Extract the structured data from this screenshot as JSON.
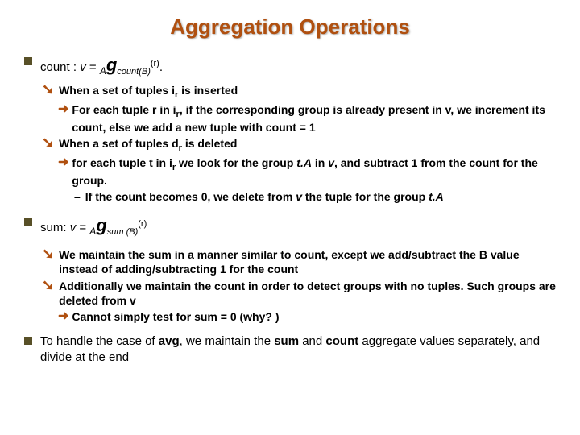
{
  "title": "Aggregation Operations",
  "colors": {
    "title_color": "#b05010",
    "l1_bullet": "#585028",
    "l2_bullet": "#b05010",
    "l3_bullet": "#b05010",
    "background": "#ffffff",
    "text": "#000000"
  },
  "fonts": {
    "title_size": 26,
    "l1_size": 15,
    "l2_size": 14,
    "l3_size": 14,
    "l4_size": 14
  },
  "content": {
    "count_label": "count : ",
    "count_expr_v": "v",
    "count_expr_eq": " = ",
    "count_expr_A": "A",
    "count_expr_g": "g",
    "count_expr_countB": "count(B)",
    "count_expr_r": "(r)",
    "count_expr_dot": ".",
    "count_insert": "When a set of tuples i",
    "count_insert_r": "r",
    "count_insert_end": " is inserted",
    "count_insert_detail_1": "For each tuple r in i",
    "count_insert_detail_1r": "r",
    "count_insert_detail_2": ", if the corresponding group is already present in v, we increment its count, else we add a new tuple with count = 1",
    "count_delete": "When a set of tuples d",
    "count_delete_r": "r",
    "count_delete_end": " is deleted",
    "count_delete_detail_1": "for each tuple t in i",
    "count_delete_detail_1r": "r",
    "count_delete_detail_2": " we look for the group ",
    "count_delete_detail_tA": "t.A",
    "count_delete_detail_3": " in ",
    "count_delete_detail_v": "v",
    "count_delete_detail_4": ", and subtract 1 from the count for the group.",
    "count_delete_sub_1": "If the count becomes 0, we delete from ",
    "count_delete_sub_v": "v",
    "count_delete_sub_2": " the tuple for the group ",
    "count_delete_sub_tA": "t.A",
    "sum_label": "sum: ",
    "sum_expr_v": "v",
    "sum_expr_eq": " = ",
    "sum_expr_A": "A",
    "sum_expr_g": "g",
    "sum_expr_sumB": "sum (B)",
    "sum_expr_r": "(r)",
    "sum_detail_1": "We maintain the sum in a manner similar to count, except we add/subtract the B value instead of adding/subtracting 1 for the count",
    "sum_detail_2": "Additionally we maintain the count in order to detect groups with no tuples. Such groups are deleted from v",
    "sum_detail_3": "Cannot simply test for sum = 0 (why? )",
    "avg_1": "To handle the case of ",
    "avg_bold": "avg",
    "avg_2": ", we maintain the ",
    "avg_sum": "sum",
    "avg_3": " and ",
    "avg_count": "count",
    "avg_4": " aggregate values separately, and divide at the end"
  }
}
